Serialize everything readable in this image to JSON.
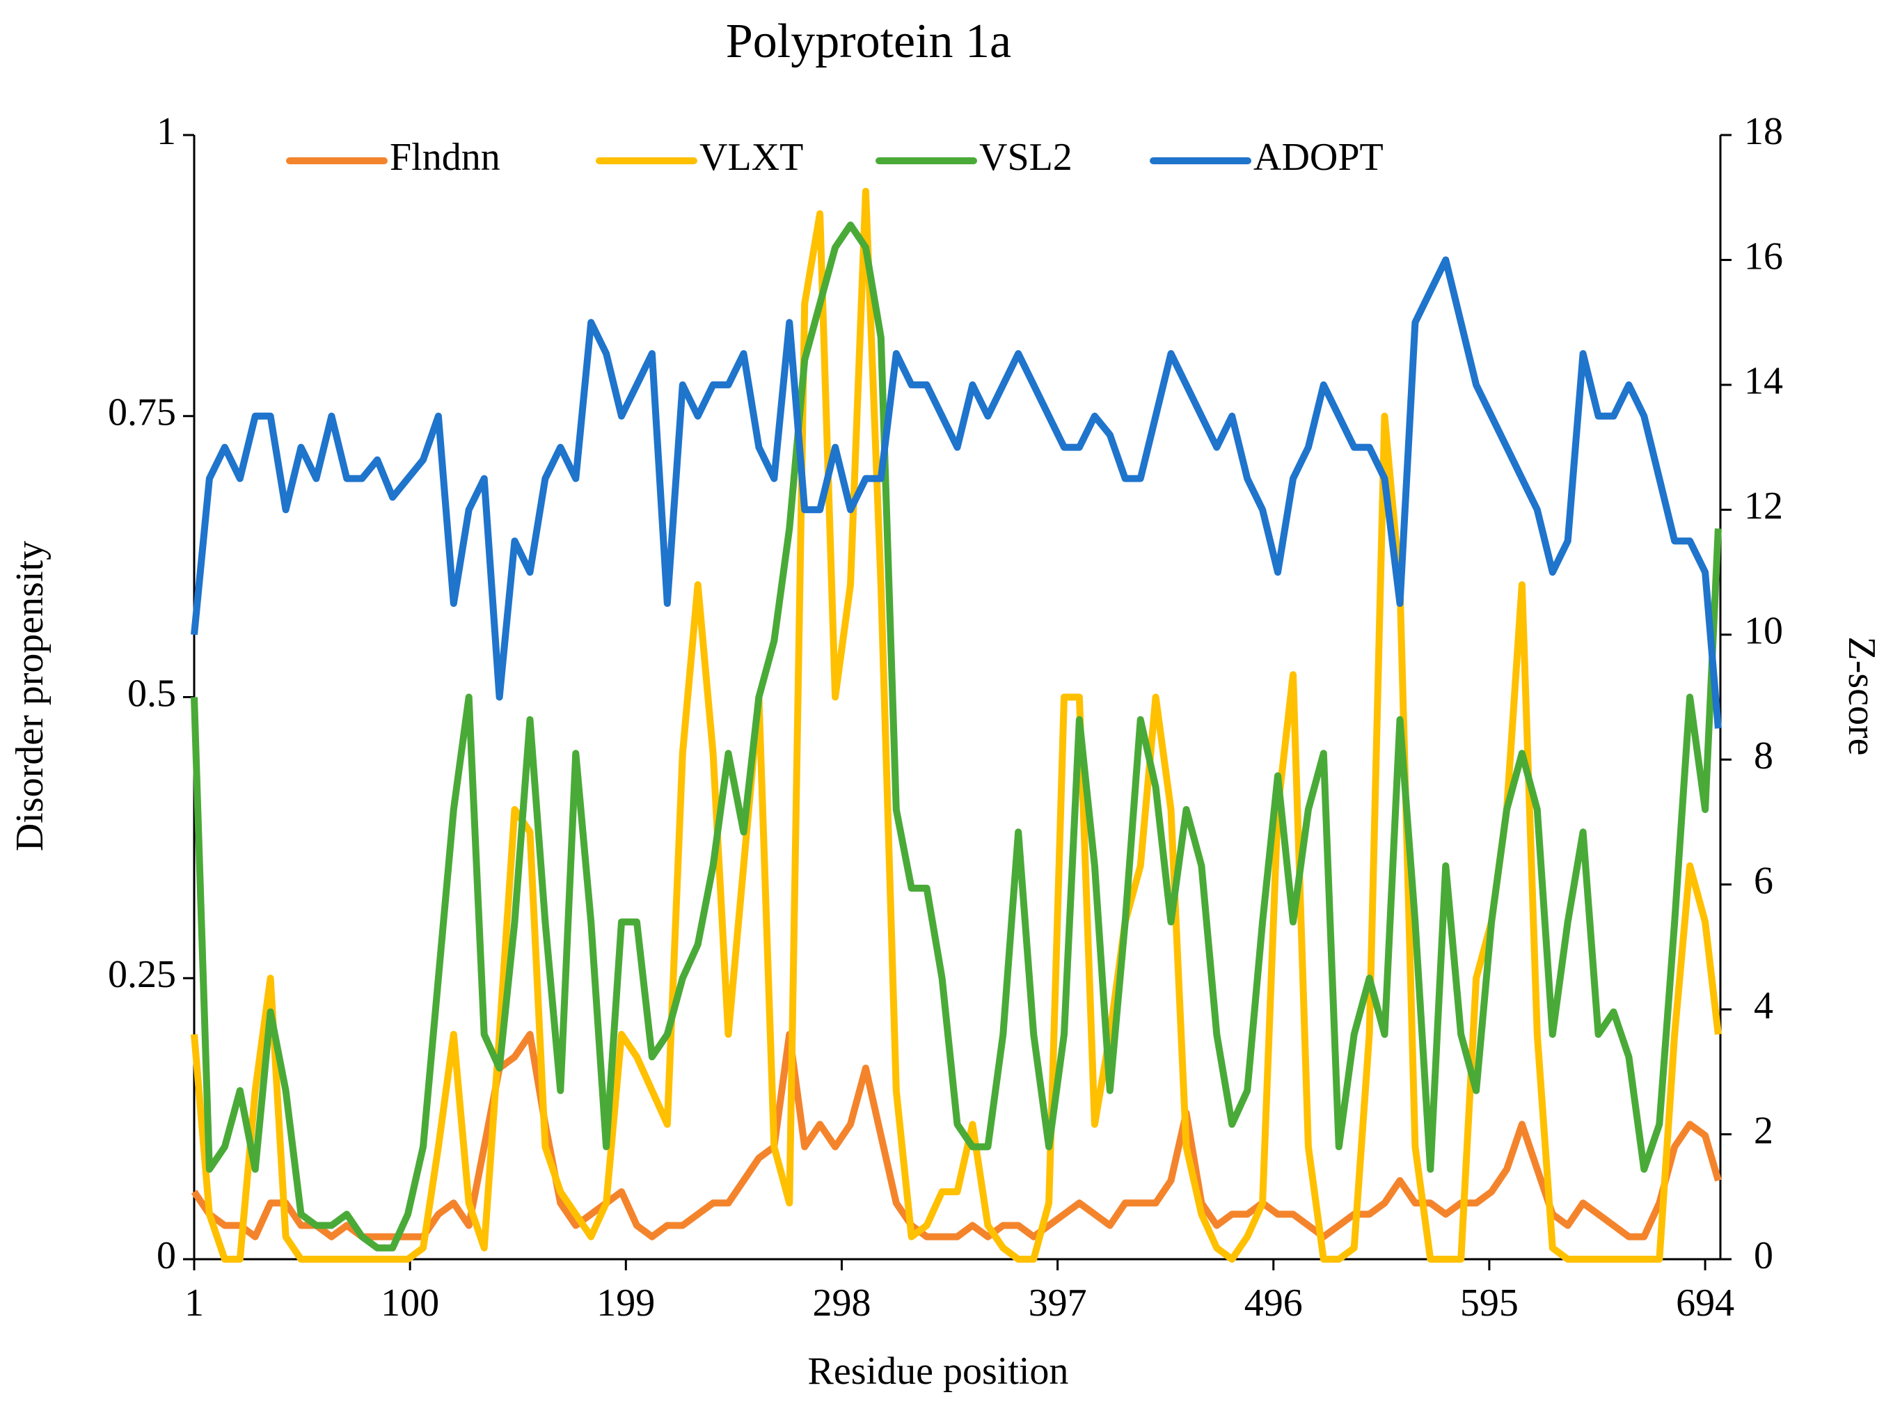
{
  "chart_data": {
    "type": "line",
    "title": "Polyprotein 1a",
    "xlabel": "Residue position",
    "ylabel": "Disorder propensity",
    "y2label": "Z-score",
    "legend": "top",
    "xlim": [
      1,
      701
    ],
    "xticks": [
      1,
      100,
      199,
      298,
      397,
      496,
      595,
      694
    ],
    "ylim": [
      0,
      1
    ],
    "yticks": [
      0,
      0.25,
      0.5,
      0.75,
      1
    ],
    "y2lim": [
      0,
      18
    ],
    "y2ticks": [
      0,
      2,
      4,
      6,
      8,
      10,
      12,
      14,
      16,
      18
    ],
    "x": [
      1,
      8,
      15,
      22,
      29,
      36,
      43,
      50,
      57,
      64,
      71,
      78,
      85,
      92,
      99,
      106,
      113,
      120,
      127,
      134,
      141,
      148,
      155,
      162,
      169,
      176,
      183,
      190,
      197,
      204,
      211,
      218,
      225,
      232,
      239,
      246,
      253,
      260,
      267,
      274,
      281,
      288,
      295,
      302,
      309,
      316,
      323,
      330,
      337,
      344,
      351,
      358,
      365,
      372,
      379,
      386,
      393,
      400,
      407,
      414,
      421,
      428,
      435,
      442,
      449,
      456,
      463,
      470,
      477,
      484,
      491,
      498,
      505,
      512,
      519,
      526,
      533,
      540,
      547,
      554,
      561,
      568,
      575,
      582,
      589,
      596,
      603,
      610,
      617,
      624,
      631,
      638,
      645,
      652,
      659,
      666,
      673,
      680,
      687,
      694,
      700
    ],
    "series": [
      {
        "name": "Flndnn",
        "color": "#f4842c",
        "values": [
          0.06,
          0.04,
          0.03,
          0.03,
          0.02,
          0.05,
          0.05,
          0.03,
          0.03,
          0.02,
          0.03,
          0.02,
          0.02,
          0.02,
          0.02,
          0.02,
          0.04,
          0.05,
          0.03,
          0.1,
          0.17,
          0.18,
          0.2,
          0.12,
          0.05,
          0.03,
          0.04,
          0.05,
          0.06,
          0.03,
          0.02,
          0.03,
          0.03,
          0.04,
          0.05,
          0.05,
          0.07,
          0.09,
          0.1,
          0.2,
          0.1,
          0.12,
          0.1,
          0.12,
          0.17,
          0.11,
          0.05,
          0.03,
          0.02,
          0.02,
          0.02,
          0.03,
          0.02,
          0.03,
          0.03,
          0.02,
          0.03,
          0.04,
          0.05,
          0.04,
          0.03,
          0.05,
          0.05,
          0.05,
          0.07,
          0.13,
          0.05,
          0.03,
          0.04,
          0.04,
          0.05,
          0.04,
          0.04,
          0.03,
          0.02,
          0.03,
          0.04,
          0.04,
          0.05,
          0.07,
          0.05,
          0.05,
          0.04,
          0.05,
          0.05,
          0.06,
          0.08,
          0.12,
          0.08,
          0.04,
          0.03,
          0.05,
          0.04,
          0.03,
          0.02,
          0.02,
          0.05,
          0.1,
          0.12,
          0.11,
          0.07
        ]
      },
      {
        "name": "VLXT",
        "color": "#ffc000",
        "values": [
          0.2,
          0.04,
          0,
          0,
          0.15,
          0.25,
          0.02,
          0,
          0,
          0,
          0,
          0,
          0,
          0,
          0,
          0.01,
          0.1,
          0.2,
          0.05,
          0.01,
          0.2,
          0.4,
          0.38,
          0.1,
          0.06,
          0.04,
          0.02,
          0.05,
          0.2,
          0.18,
          0.15,
          0.12,
          0.45,
          0.6,
          0.45,
          0.2,
          0.35,
          0.5,
          0.1,
          0.05,
          0.85,
          0.93,
          0.5,
          0.6,
          0.95,
          0.6,
          0.15,
          0.02,
          0.03,
          0.06,
          0.06,
          0.12,
          0.03,
          0.01,
          0,
          0,
          0.05,
          0.5,
          0.5,
          0.12,
          0.2,
          0.3,
          0.35,
          0.5,
          0.4,
          0.1,
          0.04,
          0.01,
          0,
          0.02,
          0.05,
          0.4,
          0.52,
          0.1,
          0,
          0,
          0.01,
          0.2,
          0.75,
          0.6,
          0.1,
          0,
          0,
          0,
          0.25,
          0.3,
          0.4,
          0.6,
          0.2,
          0.01,
          0,
          0,
          0,
          0,
          0,
          0,
          0,
          0.2,
          0.35,
          0.3,
          0.2
        ]
      },
      {
        "name": "VSL2",
        "color": "#4aaa38",
        "values": [
          0.5,
          0.08,
          0.1,
          0.15,
          0.08,
          0.22,
          0.15,
          0.04,
          0.03,
          0.03,
          0.04,
          0.02,
          0.01,
          0.01,
          0.04,
          0.1,
          0.25,
          0.4,
          0.5,
          0.2,
          0.17,
          0.3,
          0.48,
          0.3,
          0.15,
          0.45,
          0.3,
          0.1,
          0.3,
          0.3,
          0.18,
          0.2,
          0.25,
          0.28,
          0.35,
          0.45,
          0.38,
          0.5,
          0.55,
          0.65,
          0.8,
          0.85,
          0.9,
          0.92,
          0.9,
          0.82,
          0.4,
          0.33,
          0.33,
          0.25,
          0.12,
          0.1,
          0.1,
          0.2,
          0.38,
          0.2,
          0.1,
          0.2,
          0.48,
          0.35,
          0.15,
          0.3,
          0.48,
          0.42,
          0.3,
          0.4,
          0.35,
          0.2,
          0.12,
          0.15,
          0.3,
          0.43,
          0.3,
          0.4,
          0.45,
          0.1,
          0.2,
          0.25,
          0.2,
          0.48,
          0.3,
          0.08,
          0.35,
          0.2,
          0.15,
          0.3,
          0.4,
          0.45,
          0.4,
          0.2,
          0.3,
          0.38,
          0.2,
          0.22,
          0.18,
          0.08,
          0.12,
          0.3,
          0.5,
          0.4,
          0.65
        ]
      },
      {
        "name": "ADOPT",
        "color": "#1f74cc",
        "axis": "y2",
        "values": [
          10,
          12.5,
          13,
          12.5,
          13.5,
          13.5,
          12,
          13,
          12.5,
          13.5,
          12.5,
          12.5,
          12.8,
          12.2,
          12.5,
          12.8,
          13.5,
          10.5,
          12,
          12.5,
          9,
          11.5,
          11,
          12.5,
          13,
          12.5,
          15,
          14.5,
          13.5,
          14,
          14.5,
          10.5,
          14,
          13.5,
          14,
          14,
          14.5,
          13,
          12.5,
          15,
          12,
          12,
          13,
          12,
          12.5,
          12.5,
          14.5,
          14,
          14,
          13.5,
          13,
          14,
          13.5,
          14,
          14.5,
          14,
          13.5,
          13,
          13,
          13.5,
          13.2,
          12.5,
          12.5,
          13.5,
          14.5,
          14,
          13.5,
          13,
          13.5,
          12.5,
          12,
          11,
          12.5,
          13,
          14,
          13.5,
          13,
          13,
          12.5,
          10.5,
          15,
          15.5,
          16,
          15,
          14,
          13.5,
          13,
          12.5,
          12,
          11,
          11.5,
          14.5,
          13.5,
          13.5,
          14,
          13.5,
          12.5,
          11.5,
          11.5,
          11,
          8.5
        ]
      }
    ]
  }
}
